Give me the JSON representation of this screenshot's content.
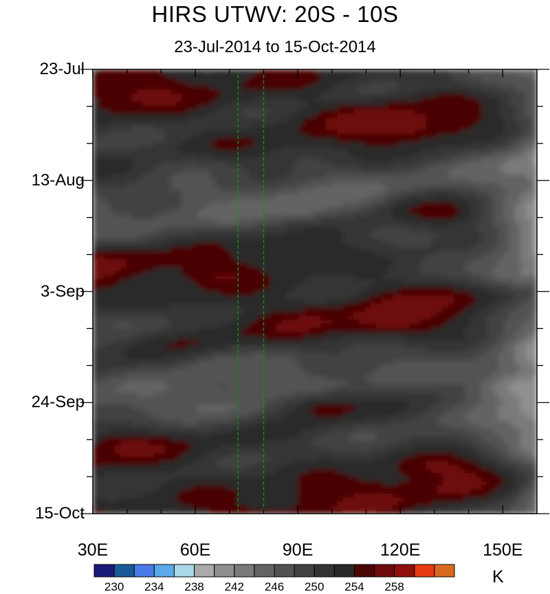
{
  "chart_data": {
    "type": "heatmap",
    "title": "HIRS UTWV: 20S - 10S",
    "subtitle": "23-Jul-2014 to 15-Oct-2014",
    "x_range": [
      30,
      160
    ],
    "x_ticks": [
      {
        "value": 30,
        "label": "30E"
      },
      {
        "value": 60,
        "label": "60E"
      },
      {
        "value": 90,
        "label": "90E"
      },
      {
        "value": 120,
        "label": "120E"
      },
      {
        "value": 150,
        "label": "150E"
      }
    ],
    "y_range_days": [
      0,
      84
    ],
    "y_ticks": [
      {
        "value": 0,
        "label": "23-Jul"
      },
      {
        "value": 21,
        "label": "13-Aug"
      },
      {
        "value": 42,
        "label": "3-Sep"
      },
      {
        "value": 63,
        "label": "24-Sep"
      },
      {
        "value": 84,
        "label": "15-Oct"
      }
    ],
    "reference_lines_x": [
      72.5,
      80
    ],
    "colorbar": {
      "unit": "K",
      "levels": [
        230,
        232,
        234,
        236,
        238,
        240,
        242,
        244,
        246,
        248,
        250,
        252,
        254,
        256,
        258
      ],
      "tick_labels": [
        "230",
        "234",
        "238",
        "242",
        "246",
        "250",
        "254",
        "258"
      ],
      "tick_values": [
        230,
        234,
        238,
        242,
        246,
        250,
        254,
        258
      ],
      "colors": [
        "#1a1a7a",
        "#1a5a9a",
        "#4a7ae8",
        "#5aaae8",
        "#aad8e8",
        "#aaaaaa",
        "#8f8f8f",
        "#7a7a7a",
        "#636363",
        "#525252",
        "#424242",
        "#343434",
        "#2a2a2a",
        "#4a0505",
        "#6e0a0a",
        "#900f0a",
        "#e83a10",
        "#d86a20"
      ]
    },
    "features": [
      {
        "lon": 120,
        "day": 11,
        "value": 259
      },
      {
        "lon": 113,
        "day": 9,
        "value": 258
      },
      {
        "lon": 130,
        "day": 27,
        "value": 258
      },
      {
        "lon": 118,
        "day": 48,
        "value": 259
      },
      {
        "lon": 130,
        "day": 75,
        "value": 259
      },
      {
        "lon": 68,
        "day": 39,
        "value": 258
      },
      {
        "lon": 33,
        "day": 36,
        "value": 258
      },
      {
        "lon": 90,
        "day": 35,
        "value": 256
      },
      {
        "lon": 150,
        "day": 2,
        "value": 247
      },
      {
        "lon": 155,
        "day": 60,
        "value": 237
      },
      {
        "lon": 155,
        "day": 39,
        "value": 240
      },
      {
        "lon": 60,
        "day": 19,
        "value": 247
      },
      {
        "lon": 68,
        "day": 56,
        "value": 245
      },
      {
        "lon": 70,
        "day": 64,
        "value": 244
      },
      {
        "lon": 40,
        "day": 48,
        "value": 245
      },
      {
        "lon": 90,
        "day": 26,
        "value": 243
      },
      {
        "lon": 40,
        "day": 71,
        "value": 258
      },
      {
        "lon": 98,
        "day": 64,
        "value": 258
      },
      {
        "lon": 45,
        "day": 5,
        "value": 257
      },
      {
        "lon": 100,
        "day": 80,
        "value": 256
      }
    ]
  }
}
